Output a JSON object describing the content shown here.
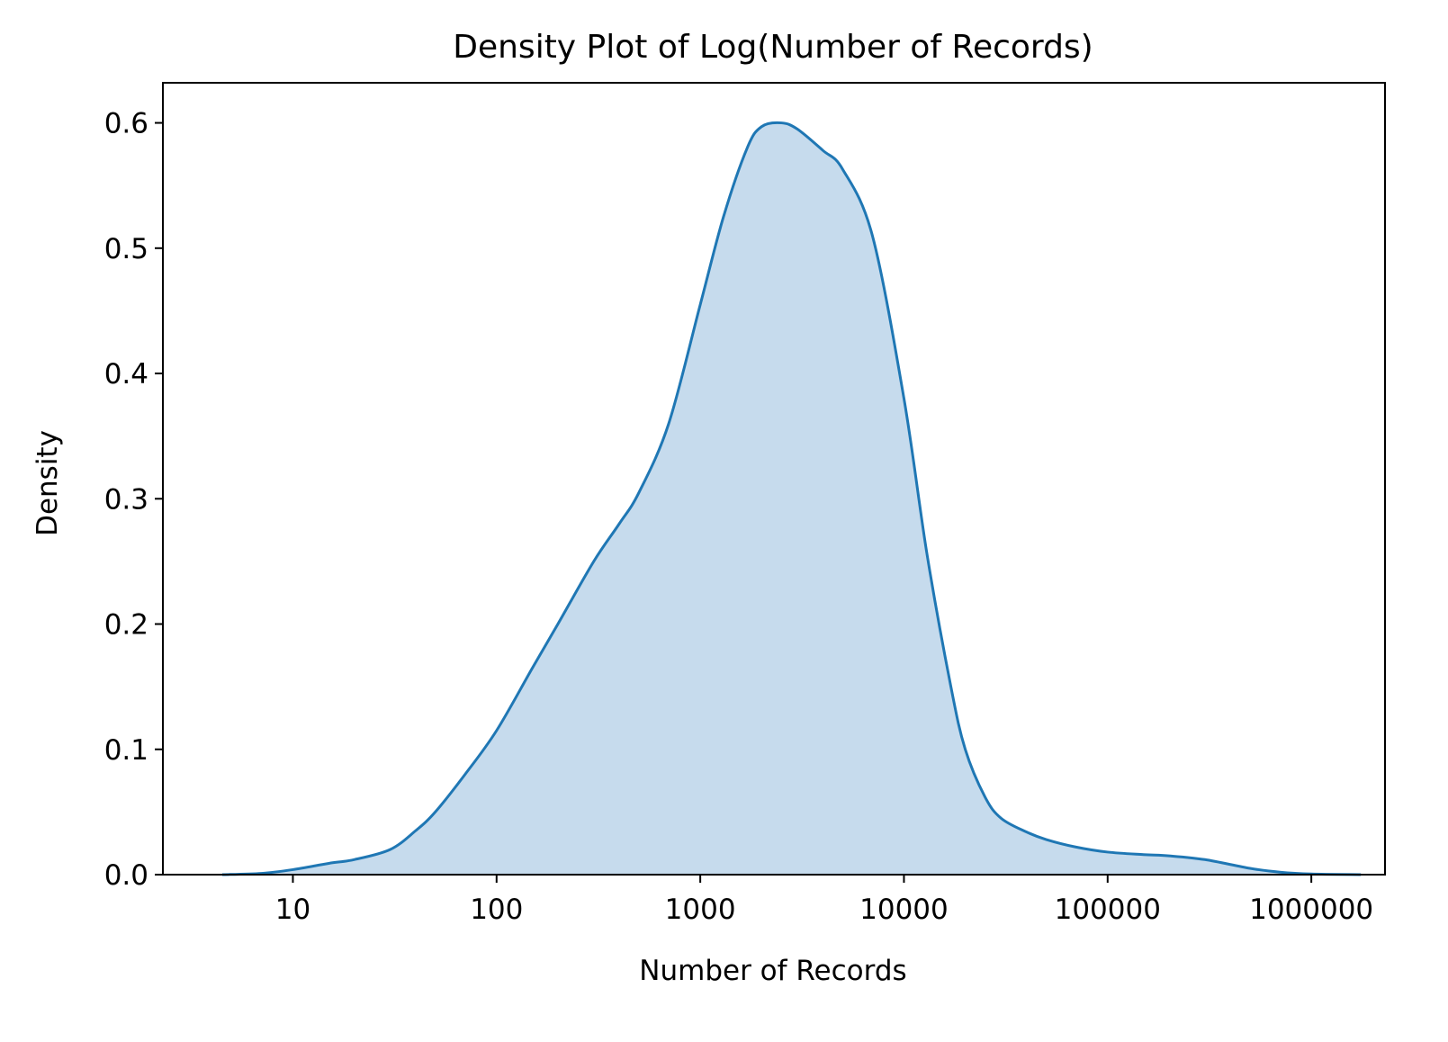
{
  "chart_data": {
    "type": "area",
    "title": "Density Plot of Log(Number of Records)",
    "xlabel": "Number of Records",
    "ylabel": "Density",
    "x_scale": "log10",
    "xlim": [
      2.3,
      2300000
    ],
    "ylim": [
      0,
      0.632
    ],
    "x_ticks": [
      {
        "value": 10,
        "label": "10"
      },
      {
        "value": 100,
        "label": "100"
      },
      {
        "value": 1000,
        "label": "1000"
      },
      {
        "value": 10000,
        "label": "10000"
      },
      {
        "value": 100000,
        "label": "100000"
      },
      {
        "value": 1000000,
        "label": "1000000"
      }
    ],
    "y_ticks": [
      {
        "value": 0.0,
        "label": "0.0"
      },
      {
        "value": 0.1,
        "label": "0.1"
      },
      {
        "value": 0.2,
        "label": "0.2"
      },
      {
        "value": 0.3,
        "label": "0.3"
      },
      {
        "value": 0.4,
        "label": "0.4"
      },
      {
        "value": 0.5,
        "label": "0.5"
      },
      {
        "value": 0.6,
        "label": "0.6"
      }
    ],
    "grid": false,
    "legend": "none",
    "line_color": "#1f77b4",
    "fill_color": "#c6dbed",
    "series": [
      {
        "x": [
          4.5,
          7,
          10,
          15,
          20,
          30,
          40,
          50,
          70,
          100,
          150,
          200,
          300,
          400,
          500,
          700,
          1000,
          1300,
          1700,
          2000,
          2500,
          3000,
          4000,
          5000,
          7000,
          10000,
          13000,
          17000,
          20000,
          25000,
          30000,
          40000,
          50000,
          70000,
          100000,
          150000,
          200000,
          300000,
          500000,
          700000,
          1000000,
          1750000
        ],
        "y": [
          0.0,
          0.001,
          0.004,
          0.009,
          0.012,
          0.02,
          0.035,
          0.05,
          0.08,
          0.115,
          0.165,
          0.2,
          0.25,
          0.28,
          0.305,
          0.36,
          0.455,
          0.525,
          0.58,
          0.597,
          0.6,
          0.595,
          0.578,
          0.563,
          0.51,
          0.38,
          0.255,
          0.15,
          0.1,
          0.062,
          0.045,
          0.034,
          0.028,
          0.022,
          0.018,
          0.016,
          0.015,
          0.012,
          0.005,
          0.002,
          0.0005,
          0.0
        ]
      }
    ]
  }
}
